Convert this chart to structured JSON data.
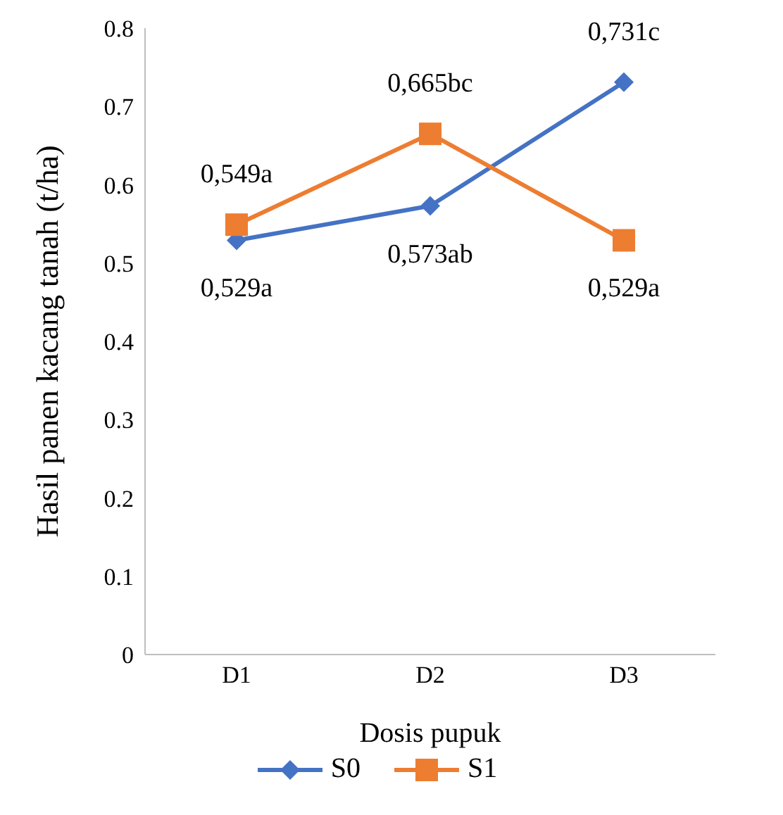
{
  "chart_data": {
    "type": "line",
    "xlabel": "Dosis pupuk",
    "ylabel": "Hasil panen kacang tanah (t/ha)",
    "categories": [
      "D1",
      "D2",
      "D3"
    ],
    "series": [
      {
        "name": "S0",
        "color": "#4472c4",
        "marker": "diamond",
        "values": [
          0.529,
          0.573,
          0.731
        ],
        "value_labels": [
          "0,529a",
          "0,573ab",
          "0,731c"
        ]
      },
      {
        "name": "S1",
        "color": "#ed7d31",
        "marker": "square",
        "values": [
          0.549,
          0.665,
          0.529
        ],
        "value_labels": [
          "0,549a",
          "0,665bc",
          "0,529a"
        ]
      }
    ],
    "ylim": [
      0,
      0.8
    ],
    "yticks": [
      0,
      0.1,
      0.2,
      0.3,
      0.4,
      0.5,
      0.6,
      0.7,
      0.8
    ],
    "grid": false,
    "legend": "bottom"
  }
}
